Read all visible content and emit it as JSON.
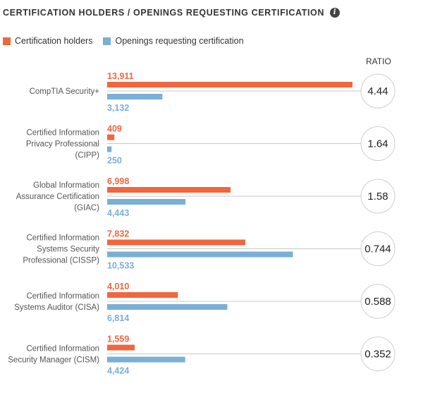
{
  "header": {
    "title": "CERTIFICATION HOLDERS / OPENINGS REQUESTING CERTIFICATION",
    "info_icon": "info-icon"
  },
  "legend": [
    {
      "name": "Certification holders",
      "color": "#f0663f"
    },
    {
      "name": "Openings requesting certification",
      "color": "#7aafd6"
    }
  ],
  "ratio_header": "RATIO",
  "chart_data": {
    "type": "bar",
    "orientation": "horizontal",
    "title": "CERTIFICATION HOLDERS / OPENINGS REQUESTING CERTIFICATION",
    "categories": [
      [
        "CompTIA Security+"
      ],
      [
        "Certified Information",
        "Privacy Professional",
        "(CIPP)"
      ],
      [
        "Global Information",
        "Assurance Certification",
        "(GIAC)"
      ],
      [
        "Certified Information",
        "Systems Security",
        "Professional (CISSP)"
      ],
      [
        "Certified Information",
        "Systems Auditor (CISA)"
      ],
      [
        "Certified Information",
        "Security Manager (CISM)"
      ]
    ],
    "series": [
      {
        "name": "Certification holders",
        "color": "#f0663f",
        "values": [
          13911,
          409,
          6998,
          7832,
          4010,
          1559
        ],
        "labels": [
          "13,911",
          "409",
          "6,998",
          "7,832",
          "4,010",
          "1,559"
        ]
      },
      {
        "name": "Openings requesting certification",
        "color": "#7aafd6",
        "values": [
          3132,
          250,
          4443,
          10533,
          6814,
          4424
        ],
        "labels": [
          "3,132",
          "250",
          "4,443",
          "10,533",
          "6,814",
          "4,424"
        ]
      }
    ],
    "ratios": [
      "4.44",
      "1.64",
      "1.58",
      "0.744",
      "0.588",
      "0.352"
    ],
    "xlim": [
      0,
      13911
    ],
    "grid": false,
    "legend_position": "top-left"
  }
}
